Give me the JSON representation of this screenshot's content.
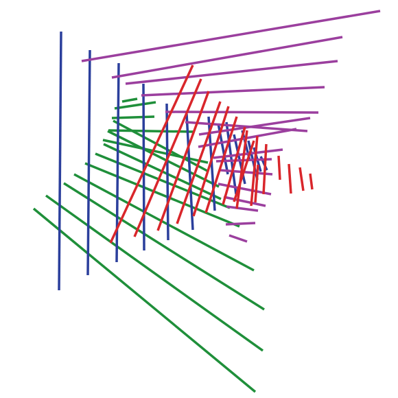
{
  "figure": {
    "background": "#ffffff",
    "colors": {
      "blue": "#2b3f9c",
      "purple": "#9b3f9e",
      "red": "#d9262b",
      "green": "#1f8f3a"
    },
    "stroke_families": [
      {
        "name": "blue-vertical-strokes",
        "color_key": "blue",
        "count": 14
      },
      {
        "name": "purple-horizontal-strokes",
        "color_key": "purple",
        "count": 16
      },
      {
        "name": "red-diagonal-strokes",
        "color_key": "red",
        "count": 16
      },
      {
        "name": "green-diagonal-strokes",
        "color_key": "green",
        "count": 14
      }
    ]
  }
}
